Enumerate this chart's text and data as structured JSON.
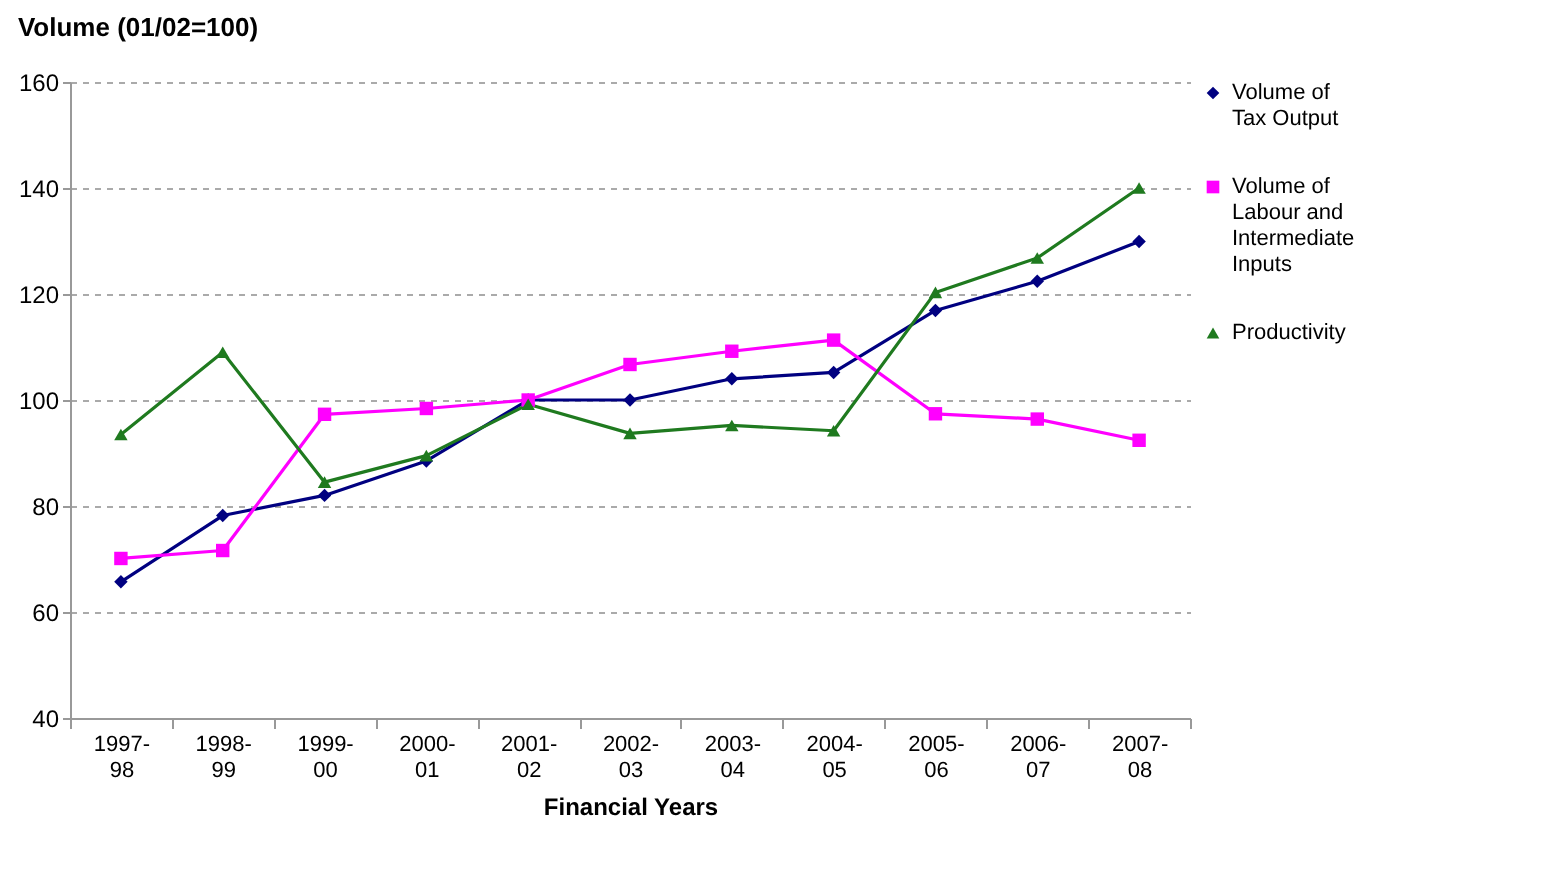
{
  "chart_data": {
    "type": "line",
    "title": "Volume (01/02=100)",
    "xlabel": "Financial Years",
    "categories": [
      "1997-98",
      "1998-99",
      "1999-00",
      "2000-01",
      "2001-02",
      "2002-03",
      "2003-04",
      "2004-05",
      "2005-06",
      "2006-07",
      "2007-08"
    ],
    "series": [
      {
        "name": "Volume of Tax Output",
        "color": "#000080",
        "marker": "diamond",
        "values": [
          65.7,
          78.2,
          82,
          88.5,
          100,
          100,
          104,
          105.2,
          116.9,
          122.4,
          129.9
        ]
      },
      {
        "name": "Volume of Labour and Intermediate Inputs",
        "color": "#ff00ff",
        "marker": "square",
        "values": [
          70.1,
          71.6,
          97.3,
          98.4,
          100,
          106.7,
          109.2,
          111.3,
          97.4,
          96.4,
          92.4
        ]
      },
      {
        "name": "Productivity",
        "color": "#1f7a1f",
        "marker": "triangle",
        "values": [
          93.5,
          109,
          84.5,
          89.5,
          99.2,
          93.7,
          95.2,
          94.2,
          120.3,
          126.8,
          140
        ]
      }
    ],
    "ylim": [
      40,
      160
    ],
    "yticks": [
      40,
      60,
      80,
      100,
      120,
      140,
      160
    ],
    "grid": "y",
    "legend": "right",
    "line_style": "solid"
  }
}
